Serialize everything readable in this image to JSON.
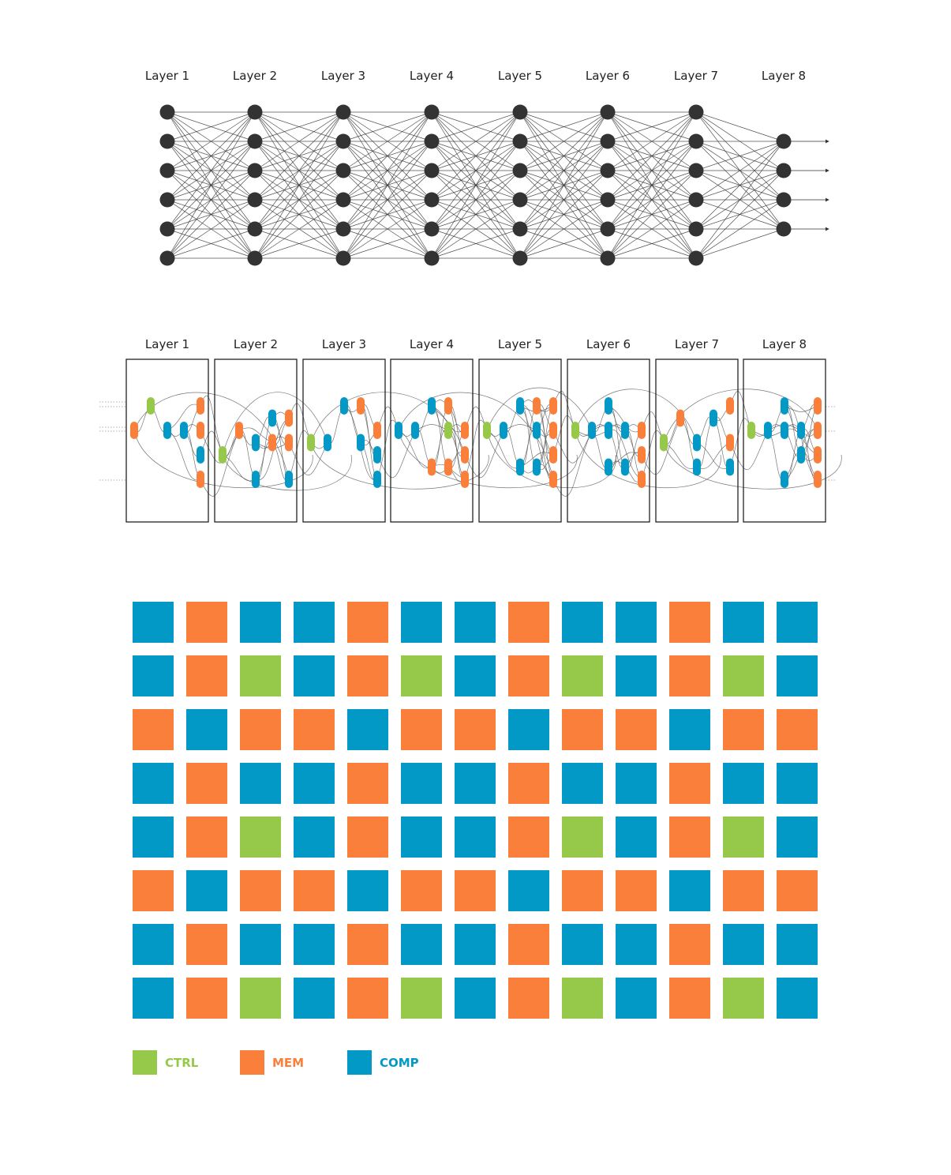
{
  "colors": {
    "ctrl": "#96c94a",
    "mem": "#f97f3b",
    "comp": "#0399c6",
    "neuron": "#333333",
    "edge": "#333333",
    "frame": "#222222"
  },
  "network": {
    "layers": [
      {
        "label": "Layer 1",
        "neurons": 6
      },
      {
        "label": "Layer 2",
        "neurons": 6
      },
      {
        "label": "Layer 3",
        "neurons": 6
      },
      {
        "label": "Layer 4",
        "neurons": 6
      },
      {
        "label": "Layer 5",
        "neurons": 6
      },
      {
        "label": "Layer 6",
        "neurons": 6
      },
      {
        "label": "Layer 7",
        "neurons": 6
      },
      {
        "label": "Layer 8",
        "neurons": 4
      }
    ],
    "output_arrows": 4
  },
  "dataflow": {
    "layers": [
      {
        "label": "Layer 1",
        "units": [
          {
            "t": "mem",
            "c": 0,
            "r": 1
          },
          {
            "t": "ctrl",
            "c": 1,
            "r": 0
          },
          {
            "t": "comp",
            "c": 2,
            "r": 1
          },
          {
            "t": "comp",
            "c": 3,
            "r": 1
          },
          {
            "t": "mem",
            "c": 4,
            "r": 0
          },
          {
            "t": "mem",
            "c": 4,
            "r": 1
          },
          {
            "t": "comp",
            "c": 4,
            "r": 2
          },
          {
            "t": "mem",
            "c": 4,
            "r": 3
          }
        ]
      },
      {
        "label": "Layer 2",
        "units": [
          {
            "t": "ctrl",
            "c": 0,
            "r": 2
          },
          {
            "t": "mem",
            "c": 1,
            "r": 1
          },
          {
            "t": "comp",
            "c": 2,
            "r": 1.5
          },
          {
            "t": "comp",
            "c": 2,
            "r": 3
          },
          {
            "t": "comp",
            "c": 3,
            "r": 0.5
          },
          {
            "t": "mem",
            "c": 3,
            "r": 1.5
          },
          {
            "t": "mem",
            "c": 4,
            "r": 0.5
          },
          {
            "t": "mem",
            "c": 4,
            "r": 1.5
          },
          {
            "t": "comp",
            "c": 4,
            "r": 3
          }
        ]
      },
      {
        "label": "Layer 3",
        "units": [
          {
            "t": "ctrl",
            "c": 0,
            "r": 1.5
          },
          {
            "t": "comp",
            "c": 1,
            "r": 1.5
          },
          {
            "t": "comp",
            "c": 2,
            "r": 0
          },
          {
            "t": "mem",
            "c": 3,
            "r": 0
          },
          {
            "t": "comp",
            "c": 3,
            "r": 1.5
          },
          {
            "t": "mem",
            "c": 4,
            "r": 1
          },
          {
            "t": "comp",
            "c": 4,
            "r": 2
          },
          {
            "t": "comp",
            "c": 4,
            "r": 3
          }
        ]
      },
      {
        "label": "Layer 4",
        "units": [
          {
            "t": "comp",
            "c": 0,
            "r": 1
          },
          {
            "t": "comp",
            "c": 1,
            "r": 1
          },
          {
            "t": "comp",
            "c": 2,
            "r": 0
          },
          {
            "t": "mem",
            "c": 2,
            "r": 2.5
          },
          {
            "t": "mem",
            "c": 3,
            "r": 0
          },
          {
            "t": "ctrl",
            "c": 3,
            "r": 1
          },
          {
            "t": "mem",
            "c": 3,
            "r": 2.5
          },
          {
            "t": "mem",
            "c": 4,
            "r": 1
          },
          {
            "t": "mem",
            "c": 4,
            "r": 2
          },
          {
            "t": "mem",
            "c": 4,
            "r": 3
          }
        ]
      },
      {
        "label": "Layer 5",
        "units": [
          {
            "t": "ctrl",
            "c": 0,
            "r": 1
          },
          {
            "t": "comp",
            "c": 1,
            "r": 1
          },
          {
            "t": "comp",
            "c": 2,
            "r": 0
          },
          {
            "t": "comp",
            "c": 2,
            "r": 2.5
          },
          {
            "t": "mem",
            "c": 3,
            "r": 0
          },
          {
            "t": "comp",
            "c": 3,
            "r": 1
          },
          {
            "t": "comp",
            "c": 3,
            "r": 2.5
          },
          {
            "t": "mem",
            "c": 4,
            "r": 0
          },
          {
            "t": "mem",
            "c": 4,
            "r": 1
          },
          {
            "t": "mem",
            "c": 4,
            "r": 2
          },
          {
            "t": "mem",
            "c": 4,
            "r": 3
          }
        ]
      },
      {
        "label": "Layer 6",
        "units": [
          {
            "t": "ctrl",
            "c": 0,
            "r": 1
          },
          {
            "t": "comp",
            "c": 1,
            "r": 1
          },
          {
            "t": "comp",
            "c": 2,
            "r": 0
          },
          {
            "t": "comp",
            "c": 2,
            "r": 1
          },
          {
            "t": "comp",
            "c": 2,
            "r": 2.5
          },
          {
            "t": "comp",
            "c": 3,
            "r": 1
          },
          {
            "t": "comp",
            "c": 3,
            "r": 2.5
          },
          {
            "t": "mem",
            "c": 4,
            "r": 1
          },
          {
            "t": "mem",
            "c": 4,
            "r": 2
          },
          {
            "t": "mem",
            "c": 4,
            "r": 3
          }
        ]
      },
      {
        "label": "Layer 7",
        "units": [
          {
            "t": "ctrl",
            "c": 0,
            "r": 1.5
          },
          {
            "t": "mem",
            "c": 1,
            "r": 0.5
          },
          {
            "t": "comp",
            "c": 2,
            "r": 1.5
          },
          {
            "t": "comp",
            "c": 2,
            "r": 2.5
          },
          {
            "t": "comp",
            "c": 3,
            "r": 0.5
          },
          {
            "t": "mem",
            "c": 4,
            "r": 0
          },
          {
            "t": "mem",
            "c": 4,
            "r": 1.5
          },
          {
            "t": "comp",
            "c": 4,
            "r": 2.5
          }
        ]
      },
      {
        "label": "Layer 8",
        "units": [
          {
            "t": "ctrl",
            "c": 0,
            "r": 1
          },
          {
            "t": "comp",
            "c": 1,
            "r": 1
          },
          {
            "t": "comp",
            "c": 2,
            "r": 0
          },
          {
            "t": "comp",
            "c": 2,
            "r": 1
          },
          {
            "t": "comp",
            "c": 2,
            "r": 3
          },
          {
            "t": "comp",
            "c": 3,
            "r": 1
          },
          {
            "t": "comp",
            "c": 3,
            "r": 2
          },
          {
            "t": "mem",
            "c": 4,
            "r": 0
          },
          {
            "t": "mem",
            "c": 4,
            "r": 1
          },
          {
            "t": "mem",
            "c": 4,
            "r": 2
          },
          {
            "t": "mem",
            "c": 4,
            "r": 3
          }
        ]
      }
    ]
  },
  "tile_grid": {
    "rows": [
      [
        "comp",
        "mem",
        "comp",
        "comp",
        "mem",
        "comp",
        "comp",
        "mem",
        "comp",
        "comp",
        "mem",
        "comp",
        "comp"
      ],
      [
        "comp",
        "mem",
        "ctrl",
        "comp",
        "mem",
        "ctrl",
        "comp",
        "mem",
        "ctrl",
        "comp",
        "mem",
        "ctrl",
        "comp"
      ],
      [
        "mem",
        "comp",
        "mem",
        "mem",
        "comp",
        "mem",
        "mem",
        "comp",
        "mem",
        "mem",
        "comp",
        "mem",
        "mem"
      ],
      [
        "comp",
        "mem",
        "comp",
        "comp",
        "mem",
        "comp",
        "comp",
        "mem",
        "comp",
        "comp",
        "mem",
        "comp",
        "comp"
      ],
      [
        "comp",
        "mem",
        "ctrl",
        "comp",
        "mem",
        "comp",
        "comp",
        "mem",
        "ctrl",
        "comp",
        "mem",
        "ctrl",
        "comp"
      ],
      [
        "mem",
        "comp",
        "mem",
        "mem",
        "comp",
        "mem",
        "mem",
        "comp",
        "mem",
        "mem",
        "comp",
        "mem",
        "mem"
      ],
      [
        "comp",
        "mem",
        "comp",
        "comp",
        "mem",
        "comp",
        "comp",
        "mem",
        "comp",
        "comp",
        "mem",
        "comp",
        "comp"
      ],
      [
        "comp",
        "mem",
        "ctrl",
        "comp",
        "mem",
        "ctrl",
        "comp",
        "mem",
        "ctrl",
        "comp",
        "mem",
        "ctrl",
        "comp"
      ]
    ]
  },
  "legend": [
    {
      "key": "ctrl",
      "label": "CTRL"
    },
    {
      "key": "mem",
      "label": "MEM"
    },
    {
      "key": "comp",
      "label": "COMP"
    }
  ]
}
